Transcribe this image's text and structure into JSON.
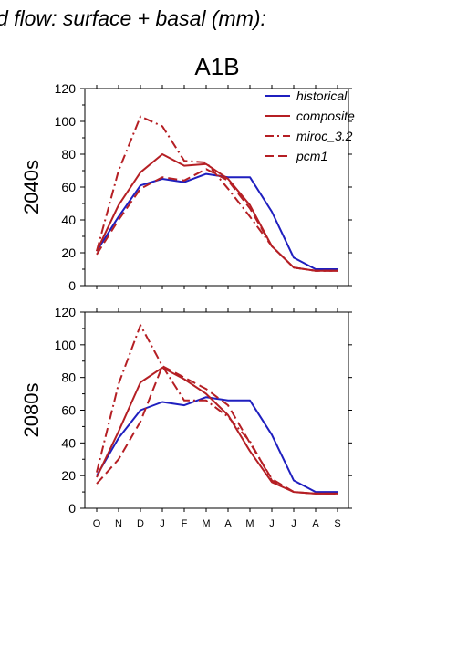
{
  "page": {
    "heading": "d flow: surface + basal (mm):",
    "scenario": "A1B"
  },
  "colors": {
    "historical": "#1f1fbf",
    "projection": "#b51f24",
    "axis": "#000000"
  },
  "chart_data": [
    {
      "type": "line",
      "row_label": "2040s",
      "categories": [
        "O",
        "N",
        "D",
        "J",
        "F",
        "M",
        "A",
        "M",
        "J",
        "J",
        "A",
        "S"
      ],
      "ylim": [
        0,
        120
      ],
      "yticks": [
        0,
        20,
        40,
        60,
        80,
        100,
        120
      ],
      "legend_position": "top-right",
      "series": [
        {
          "name": "historical",
          "style": "solid",
          "color": "#1f1fbf",
          "values": [
            21,
            42,
            61,
            65,
            63,
            68,
            66,
            66,
            45,
            17,
            10,
            10
          ]
        },
        {
          "name": "composite",
          "style": "solid",
          "color": "#b51f24",
          "values": [
            21,
            49,
            69,
            80,
            73,
            74,
            65,
            49,
            24,
            11,
            9,
            9
          ]
        },
        {
          "name": "miroc_3.2",
          "style": "dash-dot",
          "color": "#b51f24",
          "values": [
            21,
            70,
            103,
            97,
            76,
            75,
            59,
            42,
            24,
            11,
            9,
            9
          ]
        },
        {
          "name": "pcm1",
          "style": "dash",
          "color": "#b51f24",
          "values": [
            19,
            40,
            59,
            66,
            64,
            71,
            64,
            47,
            24,
            11,
            9,
            9
          ]
        }
      ]
    },
    {
      "type": "line",
      "row_label": "2080s",
      "categories": [
        "O",
        "N",
        "D",
        "J",
        "F",
        "M",
        "A",
        "M",
        "J",
        "J",
        "A",
        "S"
      ],
      "ylim": [
        0,
        120
      ],
      "yticks": [
        0,
        20,
        40,
        60,
        80,
        100,
        120
      ],
      "series": [
        {
          "name": "historical",
          "style": "solid",
          "color": "#1f1fbf",
          "values": [
            20,
            43,
            60,
            65,
            63,
            68,
            66,
            66,
            45,
            17,
            10,
            10
          ]
        },
        {
          "name": "composite",
          "style": "solid",
          "color": "#b51f24",
          "values": [
            19,
            47,
            77,
            86,
            79,
            70,
            57,
            35,
            16,
            10,
            9,
            9
          ]
        },
        {
          "name": "miroc_3.2",
          "style": "dash-dot",
          "color": "#b51f24",
          "values": [
            22,
            76,
            112,
            87,
            66,
            66,
            56,
            41,
            17,
            10,
            9,
            9
          ]
        },
        {
          "name": "pcm1",
          "style": "dash",
          "color": "#b51f24",
          "values": [
            15,
            30,
            53,
            87,
            80,
            73,
            63,
            40,
            18,
            10,
            9,
            9
          ]
        }
      ]
    }
  ]
}
